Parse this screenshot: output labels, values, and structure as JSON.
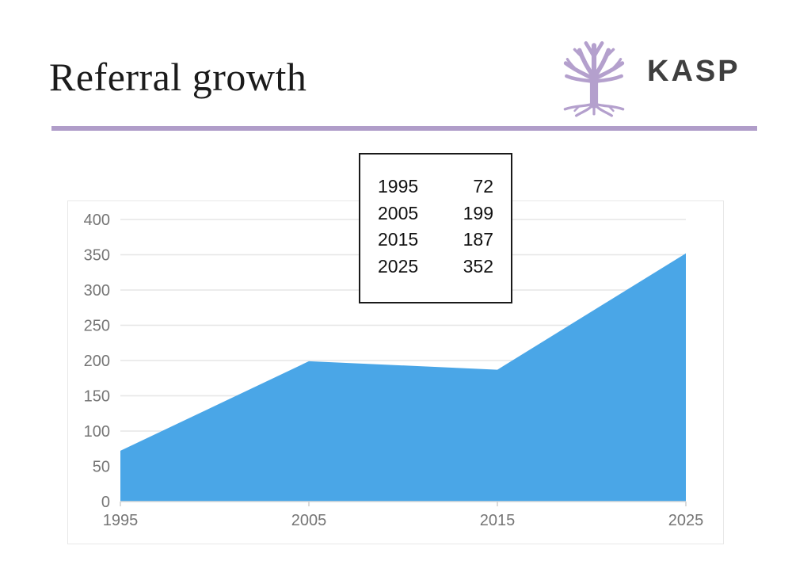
{
  "slide": {
    "title": "Referral growth",
    "logo": {
      "text": "KASP",
      "tree_color": "#b4a0cd",
      "text_color": "#3f3f3f"
    },
    "divider_color": "#b09dc9"
  },
  "callout_table": {
    "rows": [
      {
        "year": "1995",
        "value": "72"
      },
      {
        "year": "2005",
        "value": "199"
      },
      {
        "year": "2015",
        "value": "187"
      },
      {
        "year": "2025",
        "value": "352"
      }
    ]
  },
  "chart_data": {
    "type": "area",
    "title": "",
    "xlabel": "",
    "ylabel": "",
    "x": [
      "1995",
      "2005",
      "2015",
      "2025"
    ],
    "values": [
      72,
      199,
      187,
      352
    ],
    "ylim": [
      0,
      400
    ],
    "yticks": [
      0,
      50,
      100,
      150,
      200,
      250,
      300,
      350,
      400
    ],
    "grid": true,
    "legend": "none",
    "area_color": "#4aa6e7",
    "gridline_color": "#e6e6e6",
    "axis_line_color": "#d8d8d8",
    "tick_color": "#cfcfcf",
    "label_color": "#757575"
  }
}
